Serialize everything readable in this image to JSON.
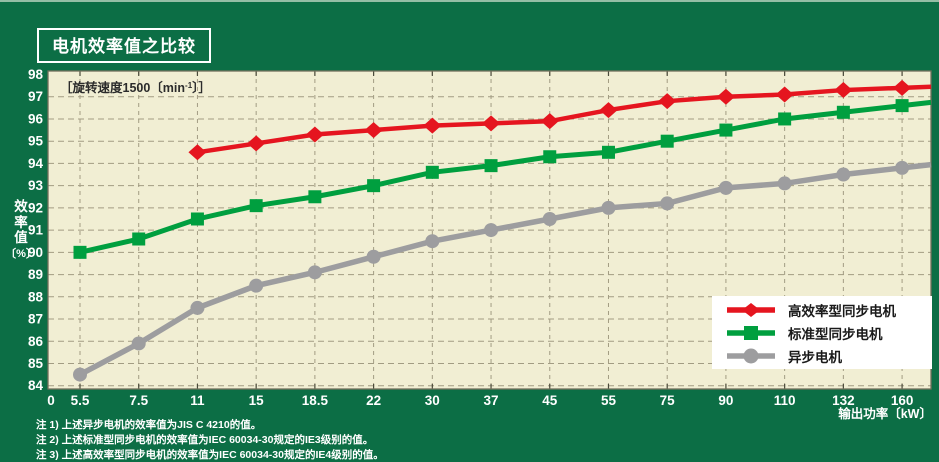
{
  "header": {
    "title": "电机效率值之比较"
  },
  "notes": [
    "注 1) 上述异步电机的效率值为JIS C 4210的值。",
    "注 2) 上述标准型同步电机的效率值为IEC 60034-30规定的IE3级别的值。",
    "注 3) 上述高效率型同步电机的效率值为IEC 60034-30规定的IE4级别的值。"
  ],
  "chart_data": {
    "type": "line",
    "title": "电机效率值之比较",
    "annotation": {
      "prefix": "［旋转速度1500〔min",
      "sup": "-1",
      "suffix": "〕］"
    },
    "xlabel": "输出功率〔kW〕",
    "ylabel_chars": [
      "效",
      "率",
      "值",
      "〔%〕"
    ],
    "origin_label": "0",
    "categories": [
      "5.5",
      "7.5",
      "11",
      "15",
      "18.5",
      "22",
      "30",
      "37",
      "45",
      "55",
      "75",
      "90",
      "110",
      "132",
      "160"
    ],
    "ylim": [
      84,
      98
    ],
    "ytick_step": 1,
    "grid": true,
    "legend_position": "bottom-right",
    "series": [
      {
        "id": "high-efficiency-sync-motor",
        "name": "高效率型同步电机",
        "marker": "diamond",
        "color": "#e5151f",
        "values": [
          null,
          null,
          94.5,
          94.9,
          95.3,
          95.5,
          95.7,
          95.8,
          95.9,
          96.4,
          96.8,
          97.0,
          97.1,
          97.3,
          97.4
        ]
      },
      {
        "id": "standard-sync-motor",
        "name": "标准型同步电机",
        "marker": "square",
        "color": "#009f3f",
        "values": [
          90.0,
          90.6,
          91.5,
          92.1,
          92.5,
          93.0,
          93.6,
          93.9,
          94.3,
          94.5,
          95.0,
          95.5,
          96.0,
          96.3,
          96.6
        ]
      },
      {
        "id": "induction-motor",
        "name": "异步电机",
        "marker": "circle",
        "color": "#9d9d9f",
        "values": [
          84.5,
          85.9,
          87.5,
          88.5,
          89.1,
          89.8,
          90.5,
          91.0,
          91.5,
          92.0,
          92.2,
          92.9,
          93.1,
          93.5,
          93.8
        ]
      }
    ],
    "colors": {
      "canvas_bg": "#0c6e45",
      "plot_bg": "#f1eed3",
      "grid": "#a29c83",
      "plot_border": "#73705c",
      "tick_text": "#ffffff",
      "legend_text": "#1a1a1a",
      "annotation_text": "#2b2b2b"
    }
  }
}
